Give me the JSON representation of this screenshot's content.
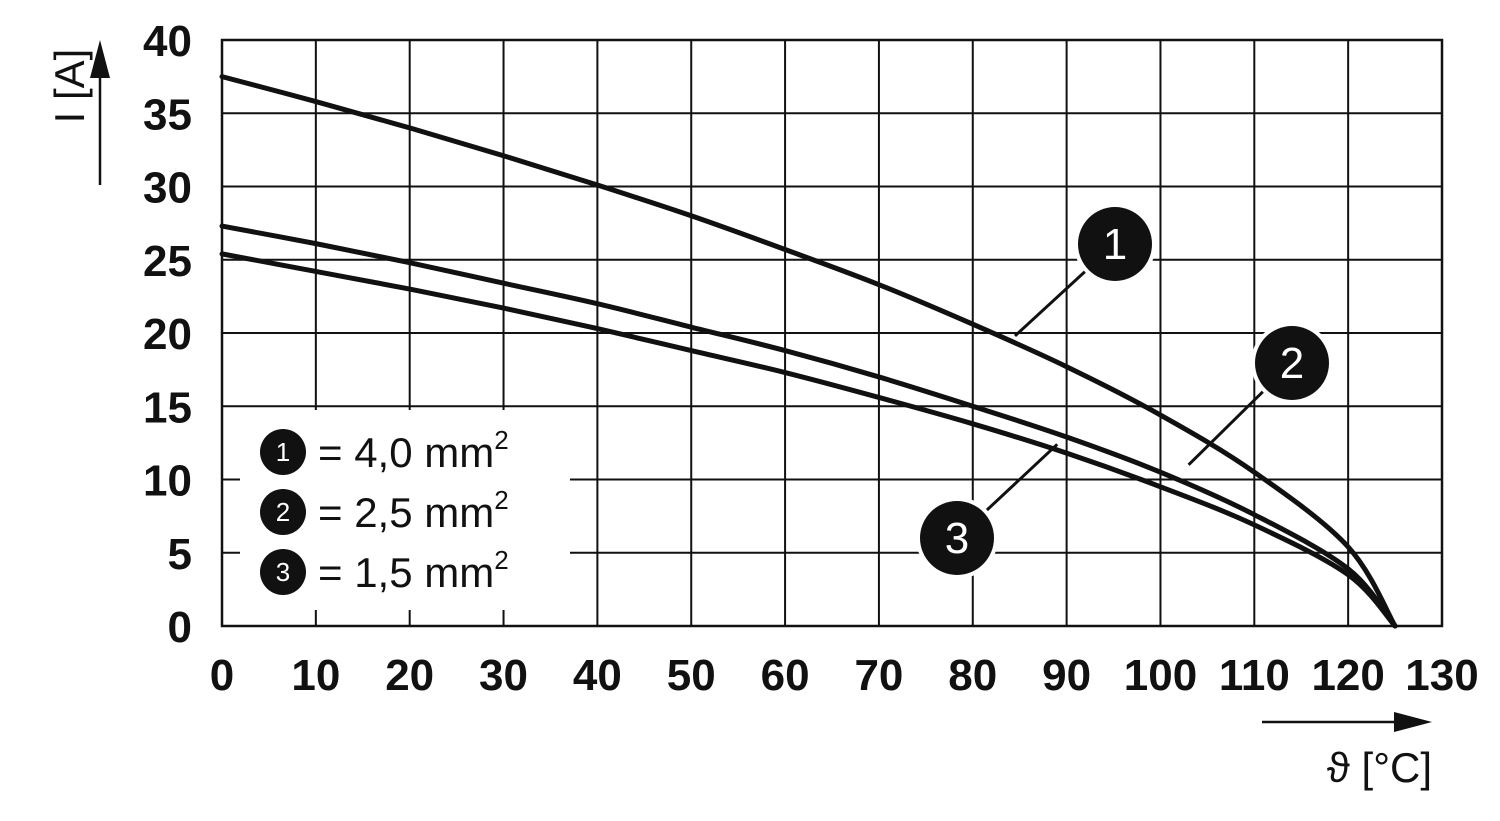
{
  "chart_data": {
    "type": "line",
    "xlabel": "ϑ [°C]",
    "ylabel": "I [A]",
    "xlim": [
      0,
      130
    ],
    "ylim": [
      0,
      40
    ],
    "x_ticks": [
      "0",
      "10",
      "20",
      "30",
      "40",
      "50",
      "60",
      "70",
      "80",
      "90",
      "100",
      "110",
      "120",
      "130"
    ],
    "y_ticks": [
      "0",
      "5",
      "10",
      "15",
      "20",
      "25",
      "30",
      "35",
      "40"
    ],
    "grid": true,
    "legend_placement": "bottom-left",
    "series": [
      {
        "name": "4,0 mm²",
        "marker": "1",
        "x": [
          0,
          10,
          20,
          30,
          40,
          50,
          60,
          70,
          80,
          90,
          100,
          110,
          120,
          125
        ],
        "y": [
          37.5,
          35.8,
          34.0,
          32.1,
          30.1,
          28.0,
          25.7,
          23.3,
          20.6,
          17.7,
          14.4,
          10.5,
          5.4,
          0
        ]
      },
      {
        "name": "2,5 mm²",
        "marker": "2",
        "x": [
          0,
          10,
          20,
          30,
          40,
          50,
          60,
          70,
          80,
          90,
          100,
          110,
          120,
          125
        ],
        "y": [
          27.3,
          26.1,
          24.8,
          23.4,
          22.0,
          20.4,
          18.8,
          17.0,
          15.0,
          12.9,
          10.5,
          7.6,
          3.9,
          0
        ]
      },
      {
        "name": "1,5 mm²",
        "marker": "3",
        "x": [
          0,
          10,
          20,
          30,
          40,
          50,
          60,
          70,
          80,
          90,
          100,
          110,
          120,
          125
        ],
        "y": [
          25.4,
          24.2,
          23.0,
          21.7,
          20.3,
          18.8,
          17.3,
          15.6,
          13.8,
          11.8,
          9.5,
          6.9,
          3.5,
          0
        ]
      }
    ],
    "legend": [
      {
        "marker": "1",
        "text": "= 4,0 mm",
        "sup": "2"
      },
      {
        "marker": "2",
        "text": "= 2,5 mm",
        "sup": "2"
      },
      {
        "marker": "3",
        "text": "= 1,5 mm",
        "sup": "2"
      }
    ],
    "colors": {
      "line": "#111111",
      "grid": "#111111",
      "marker_fill": "#111111",
      "background": "#ffffff"
    }
  }
}
